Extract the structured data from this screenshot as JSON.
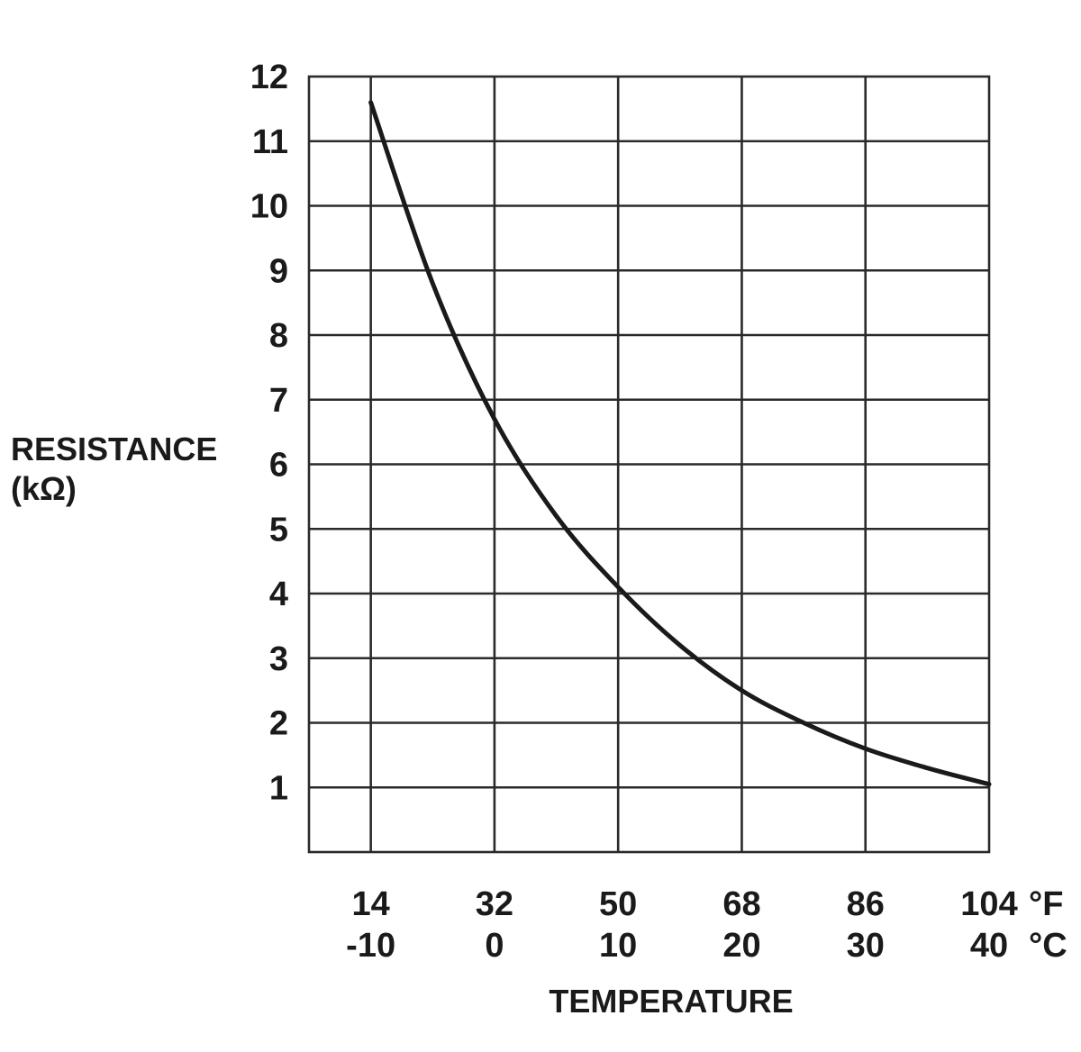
{
  "chart_data": {
    "type": "line",
    "xlabel": "TEMPERATURE",
    "ylabel": [
      "RESISTANCE",
      "(kΩ)"
    ],
    "x_unit_primary": "°F",
    "x_unit_secondary": "°C",
    "x_ticks_f": [
      "14",
      "32",
      "50",
      "68",
      "86",
      "104"
    ],
    "x_ticks_c": [
      "-10",
      "0",
      "10",
      "20",
      "30",
      "40"
    ],
    "x_tick_values_c": [
      -10,
      0,
      10,
      20,
      30,
      40
    ],
    "y_ticks": [
      "1",
      "2",
      "3",
      "4",
      "5",
      "6",
      "7",
      "8",
      "9",
      "10",
      "11",
      "12"
    ],
    "xlim_c": [
      -15,
      40
    ],
    "ylim": [
      0,
      12
    ],
    "grid": true,
    "series": [
      {
        "x_c": [
          -10,
          -5,
          0,
          5,
          10,
          15,
          20,
          25,
          30,
          35,
          40
        ],
        "y": [
          11.6,
          8.8,
          6.7,
          5.2,
          4.1,
          3.2,
          2.5,
          2.0,
          1.6,
          1.3,
          1.05
        ]
      }
    ]
  }
}
